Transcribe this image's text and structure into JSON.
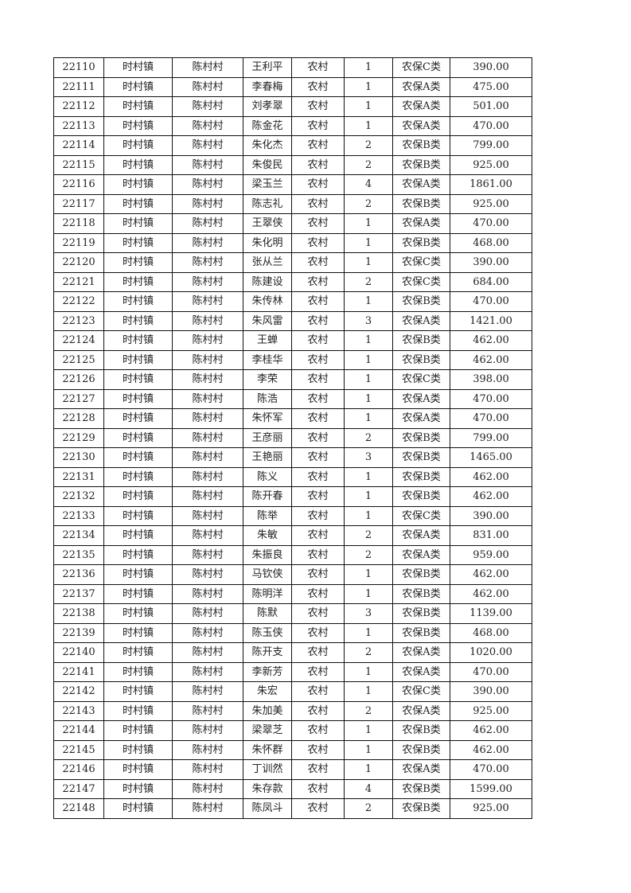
{
  "rows": [
    [
      "22110",
      "时村镇",
      "陈村村",
      "王利平",
      "农村",
      "1",
      "农保C类",
      "390.00"
    ],
    [
      "22111",
      "时村镇",
      "陈村村",
      "李春梅",
      "农村",
      "1",
      "农保A类",
      "475.00"
    ],
    [
      "22112",
      "时村镇",
      "陈村村",
      "刘孝翠",
      "农村",
      "1",
      "农保A类",
      "501.00"
    ],
    [
      "22113",
      "时村镇",
      "陈村村",
      "陈金花",
      "农村",
      "1",
      "农保A类",
      "470.00"
    ],
    [
      "22114",
      "时村镇",
      "陈村村",
      "朱化杰",
      "农村",
      "2",
      "农保B类",
      "799.00"
    ],
    [
      "22115",
      "时村镇",
      "陈村村",
      "朱俊民",
      "农村",
      "2",
      "农保B类",
      "925.00"
    ],
    [
      "22116",
      "时村镇",
      "陈村村",
      "梁玉兰",
      "农村",
      "4",
      "农保A类",
      "1861.00"
    ],
    [
      "22117",
      "时村镇",
      "陈村村",
      "陈志礼",
      "农村",
      "2",
      "农保B类",
      "925.00"
    ],
    [
      "22118",
      "时村镇",
      "陈村村",
      "王翠侠",
      "农村",
      "1",
      "农保A类",
      "470.00"
    ],
    [
      "22119",
      "时村镇",
      "陈村村",
      "朱化明",
      "农村",
      "1",
      "农保B类",
      "468.00"
    ],
    [
      "22120",
      "时村镇",
      "陈村村",
      "张从兰",
      "农村",
      "1",
      "农保C类",
      "390.00"
    ],
    [
      "22121",
      "时村镇",
      "陈村村",
      "陈建设",
      "农村",
      "2",
      "农保C类",
      "684.00"
    ],
    [
      "22122",
      "时村镇",
      "陈村村",
      "朱传林",
      "农村",
      "1",
      "农保B类",
      "470.00"
    ],
    [
      "22123",
      "时村镇",
      "陈村村",
      "朱风雷",
      "农村",
      "3",
      "农保A类",
      "1421.00"
    ],
    [
      "22124",
      "时村镇",
      "陈村村",
      "王蝉",
      "农村",
      "1",
      "农保B类",
      "462.00"
    ],
    [
      "22125",
      "时村镇",
      "陈村村",
      "李桂华",
      "农村",
      "1",
      "农保B类",
      "462.00"
    ],
    [
      "22126",
      "时村镇",
      "陈村村",
      "李荣",
      "农村",
      "1",
      "农保C类",
      "398.00"
    ],
    [
      "22127",
      "时村镇",
      "陈村村",
      "陈浩",
      "农村",
      "1",
      "农保A类",
      "470.00"
    ],
    [
      "22128",
      "时村镇",
      "陈村村",
      "朱怀军",
      "农村",
      "1",
      "农保A类",
      "470.00"
    ],
    [
      "22129",
      "时村镇",
      "陈村村",
      "王彦丽",
      "农村",
      "2",
      "农保B类",
      "799.00"
    ],
    [
      "22130",
      "时村镇",
      "陈村村",
      "王艳丽",
      "农村",
      "3",
      "农保B类",
      "1465.00"
    ],
    [
      "22131",
      "时村镇",
      "陈村村",
      "陈义",
      "农村",
      "1",
      "农保B类",
      "462.00"
    ],
    [
      "22132",
      "时村镇",
      "陈村村",
      "陈开春",
      "农村",
      "1",
      "农保B类",
      "462.00"
    ],
    [
      "22133",
      "时村镇",
      "陈村村",
      "陈举",
      "农村",
      "1",
      "农保C类",
      "390.00"
    ],
    [
      "22134",
      "时村镇",
      "陈村村",
      "朱敏",
      "农村",
      "2",
      "农保A类",
      "831.00"
    ],
    [
      "22135",
      "时村镇",
      "陈村村",
      "朱振良",
      "农村",
      "2",
      "农保A类",
      "959.00"
    ],
    [
      "22136",
      "时村镇",
      "陈村村",
      "马钦侠",
      "农村",
      "1",
      "农保B类",
      "462.00"
    ],
    [
      "22137",
      "时村镇",
      "陈村村",
      "陈明洋",
      "农村",
      "1",
      "农保B类",
      "462.00"
    ],
    [
      "22138",
      "时村镇",
      "陈村村",
      "陈默",
      "农村",
      "3",
      "农保B类",
      "1139.00"
    ],
    [
      "22139",
      "时村镇",
      "陈村村",
      "陈玉侠",
      "农村",
      "1",
      "农保B类",
      "468.00"
    ],
    [
      "22140",
      "时村镇",
      "陈村村",
      "陈开支",
      "农村",
      "2",
      "农保A类",
      "1020.00"
    ],
    [
      "22141",
      "时村镇",
      "陈村村",
      "李新芳",
      "农村",
      "1",
      "农保A类",
      "470.00"
    ],
    [
      "22142",
      "时村镇",
      "陈村村",
      "朱宏",
      "农村",
      "1",
      "农保C类",
      "390.00"
    ],
    [
      "22143",
      "时村镇",
      "陈村村",
      "朱加美",
      "农村",
      "2",
      "农保A类",
      "925.00"
    ],
    [
      "22144",
      "时村镇",
      "陈村村",
      "梁翠芝",
      "农村",
      "1",
      "农保B类",
      "462.00"
    ],
    [
      "22145",
      "时村镇",
      "陈村村",
      "朱怀群",
      "农村",
      "1",
      "农保B类",
      "462.00"
    ],
    [
      "22146",
      "时村镇",
      "陈村村",
      "丁训然",
      "农村",
      "1",
      "农保A类",
      "470.00"
    ],
    [
      "22147",
      "时村镇",
      "陈村村",
      "朱存款",
      "农村",
      "4",
      "农保B类",
      "1599.00"
    ],
    [
      "22148",
      "时村镇",
      "陈村村",
      "陈凤斗",
      "农村",
      "2",
      "农保B类",
      "925.00"
    ]
  ]
}
